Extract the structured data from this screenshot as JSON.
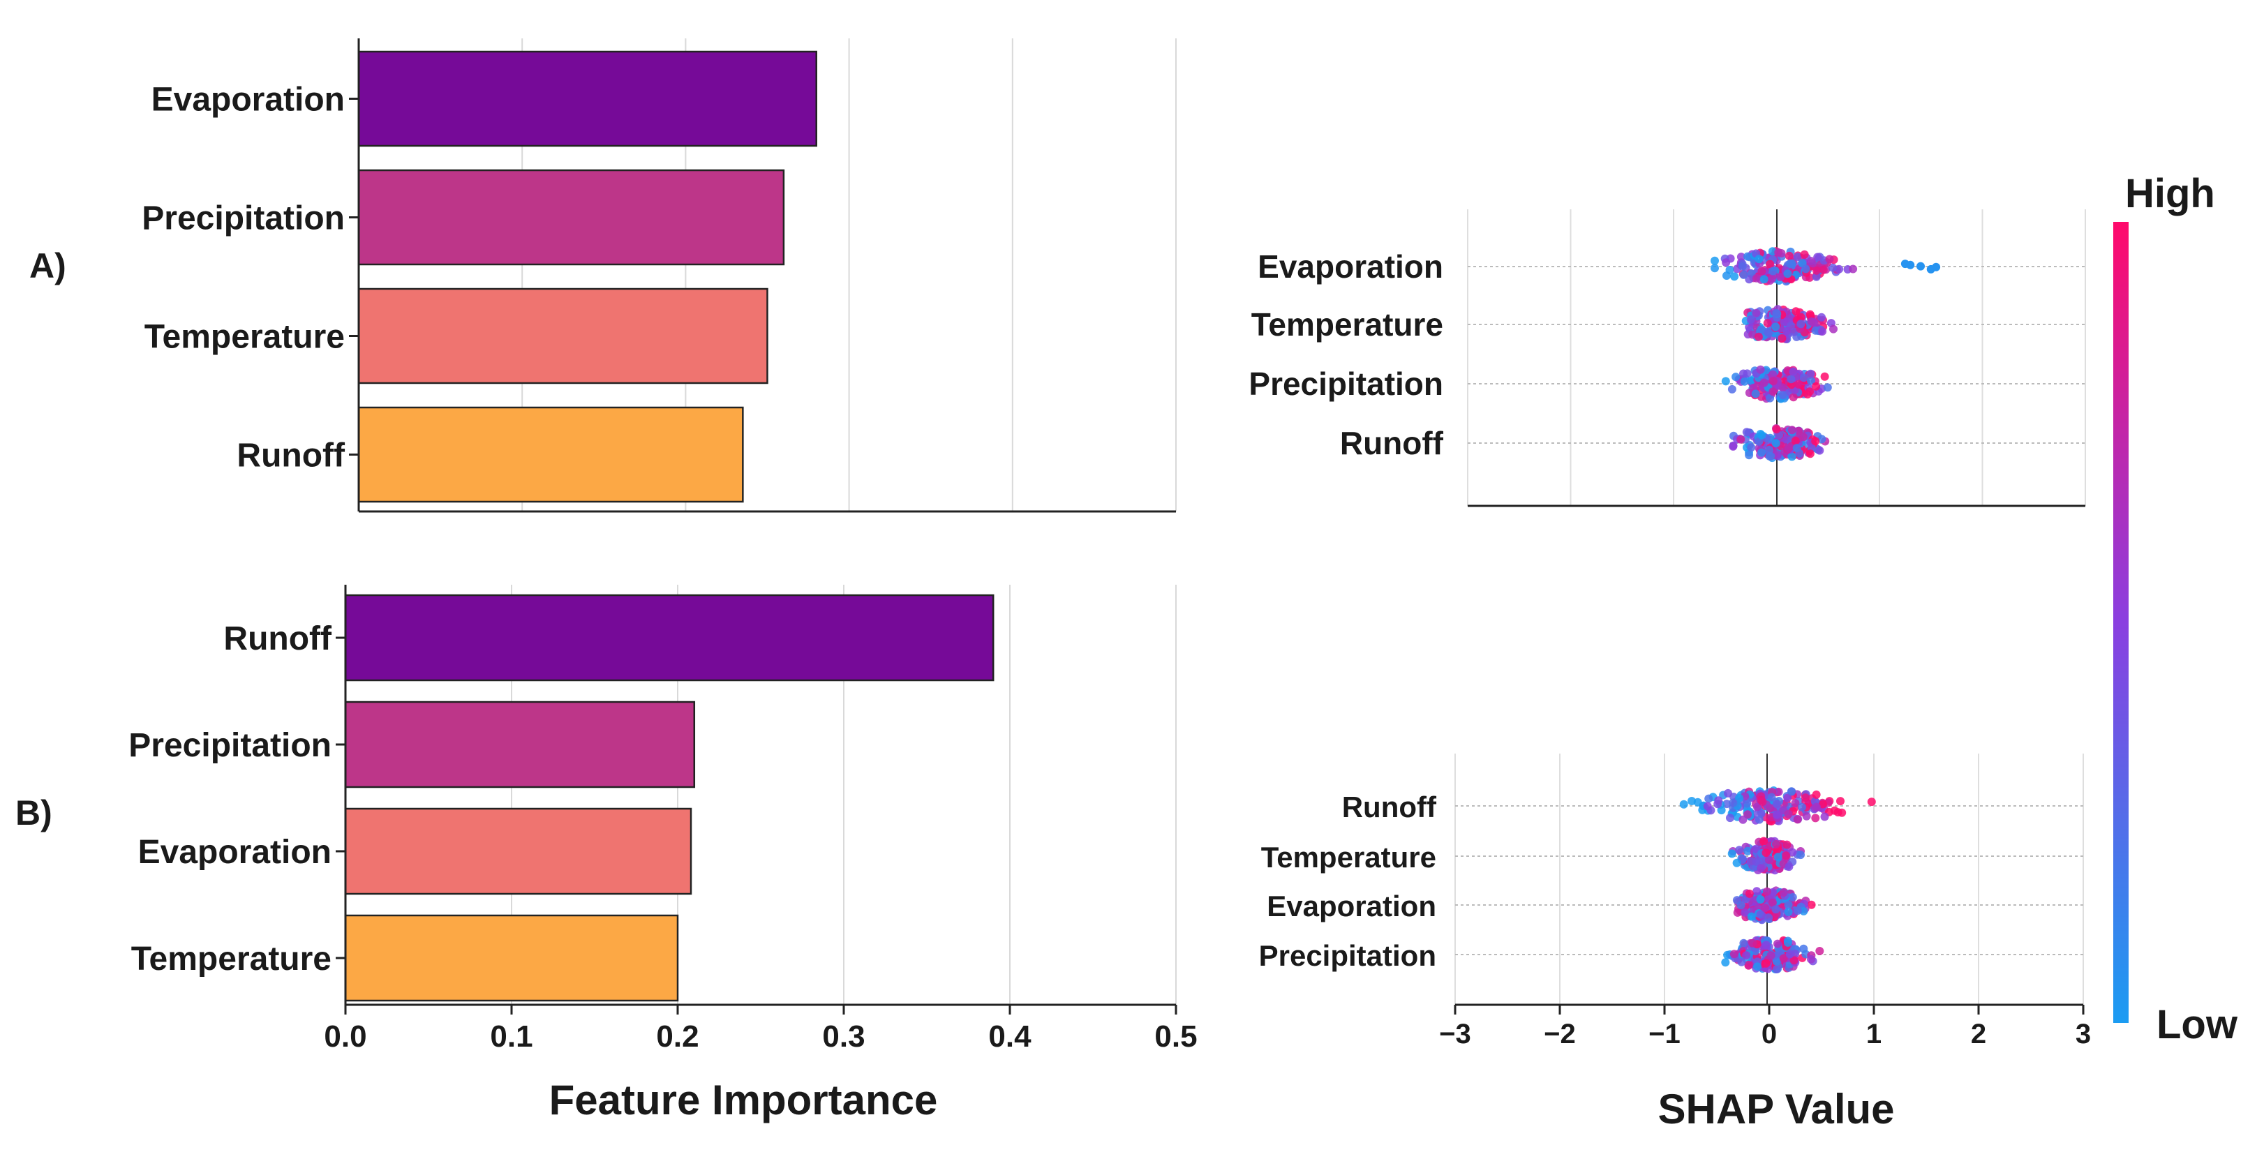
{
  "panels": {
    "a": "A)",
    "b": "B)"
  },
  "xlabel_importance": "Feature Importance",
  "xlabel_shap": "SHAP Value",
  "colorbar": {
    "high": "High",
    "low": "Low",
    "color_high": "#ff0a6b",
    "color_mid": "#8a3fe0",
    "color_low": "#1b9cf2"
  },
  "bar_colors": [
    "#760a98",
    "#bd3689",
    "#ef7470",
    "#fca845"
  ],
  "chart_data": [
    {
      "id": "importance_a",
      "type": "bar",
      "orientation": "horizontal",
      "categories": [
        "Evaporation",
        "Precipitation",
        "Temperature",
        "Runoff"
      ],
      "values": [
        0.28,
        0.26,
        0.25,
        0.235
      ],
      "xlim": [
        0,
        0.5
      ],
      "xticks": [
        0.1,
        0.2,
        0.3,
        0.4,
        0.5
      ],
      "grid": true,
      "xlabel": "",
      "ylabel": ""
    },
    {
      "id": "importance_b",
      "type": "bar",
      "orientation": "horizontal",
      "categories": [
        "Runoff",
        "Precipitation",
        "Evaporation",
        "Temperature"
      ],
      "values": [
        0.39,
        0.21,
        0.208,
        0.2
      ],
      "xlim": [
        0,
        0.5
      ],
      "xticks": [
        0.0,
        0.1,
        0.2,
        0.3,
        0.4,
        0.5
      ],
      "xticklabels": [
        "0.0",
        "0.1",
        "0.2",
        "0.3",
        "0.4",
        "0.5"
      ],
      "grid": true,
      "xlabel": "Feature Importance"
    },
    {
      "id": "shap_a",
      "type": "scatter",
      "subtype": "beeswarm",
      "categories": [
        "Evaporation",
        "Temperature",
        "Precipitation",
        "Runoff"
      ],
      "xlim": [
        -3,
        3
      ],
      "ranges": [
        [
          -0.6,
          0.9
        ],
        [
          -0.45,
          0.8
        ],
        [
          -0.5,
          0.7
        ],
        [
          -0.45,
          0.75
        ]
      ],
      "outliers": [
        [],
        [],
        [],
        []
      ],
      "outlier_points": [
        [
          1.25,
          1.3,
          1.4,
          1.5,
          1.55
        ],
        [],
        [],
        []
      ],
      "grid": true
    },
    {
      "id": "shap_b",
      "type": "scatter",
      "subtype": "beeswarm",
      "categories": [
        "Runoff",
        "Temperature",
        "Evaporation",
        "Precipitation"
      ],
      "xlim": [
        -3,
        3
      ],
      "xticks": [
        -3,
        -2,
        -1,
        0,
        1,
        2,
        3
      ],
      "xticklabels": [
        "−3",
        "−2",
        "−1",
        "0",
        "1",
        "2",
        "3"
      ],
      "ranges": [
        [
          -1.05,
          1.0
        ],
        [
          -0.5,
          0.3
        ],
        [
          -0.45,
          0.6
        ],
        [
          -0.55,
          0.6
        ]
      ],
      "outlier_points": [
        [],
        [],
        [],
        []
      ],
      "grid": true,
      "xlabel": "SHAP Value"
    }
  ]
}
